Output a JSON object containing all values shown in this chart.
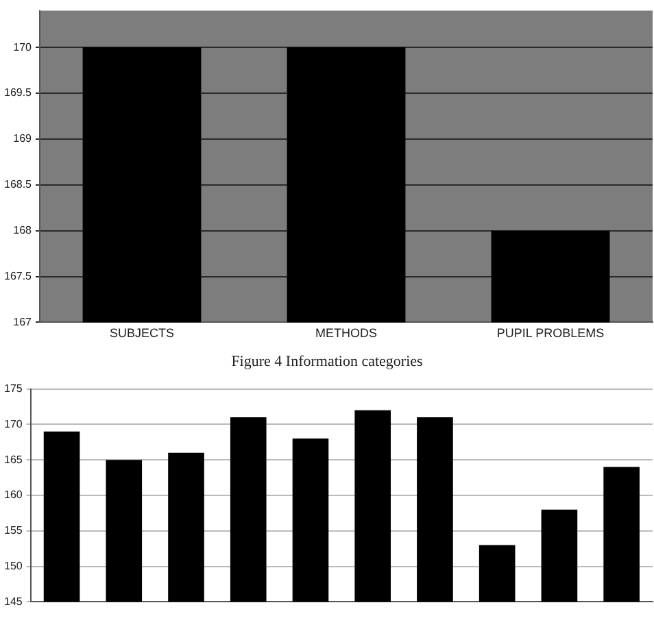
{
  "chart_data": [
    {
      "type": "bar",
      "categories": [
        "SUBJECTS",
        "METHODS",
        "PUPIL PROBLEMS"
      ],
      "values": [
        170,
        170,
        168
      ],
      "color": "#000000",
      "ylim": [
        167,
        170.4
      ],
      "yticks": [
        167,
        167.5,
        168,
        168.5,
        169,
        169.5,
        170
      ],
      "grid": "y",
      "annotations": [
        "Figure 4 Information categories"
      ]
    },
    {
      "type": "bar",
      "categories": [
        null,
        null,
        null,
        null,
        null,
        null,
        null,
        null,
        null,
        null
      ],
      "values": [
        169,
        165,
        166,
        171,
        168,
        172,
        171,
        153,
        158,
        164
      ],
      "color": "#000000",
      "ylim": [
        145,
        175
      ],
      "yticks": [
        145,
        150,
        155,
        160,
        165,
        170,
        175
      ],
      "grid": "y"
    }
  ]
}
